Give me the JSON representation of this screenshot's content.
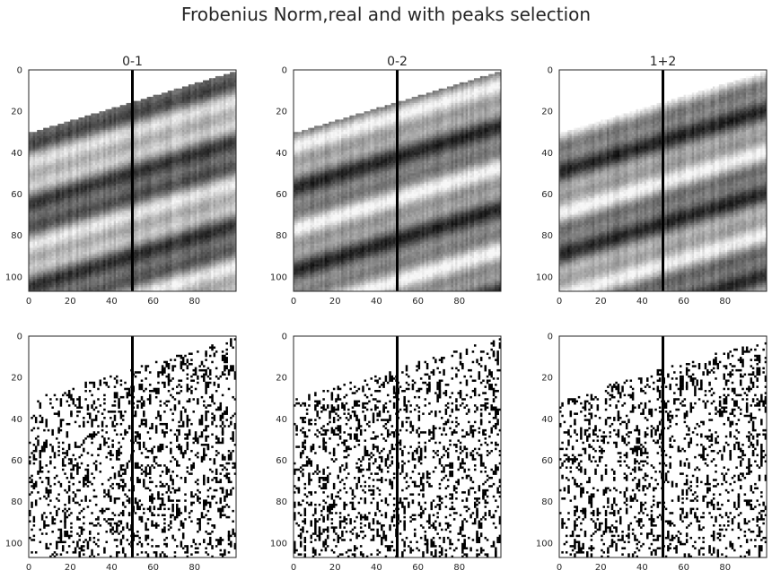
{
  "suptitle": "Frobenius Norm,real and with peaks selection",
  "chart_data": [
    {
      "type": "heatmap",
      "title": "0-1",
      "row": "top",
      "colormap": "grayscale",
      "xlim": [
        0,
        100
      ],
      "ylim": [
        107,
        0
      ],
      "xticks": [
        0,
        20,
        40,
        60,
        80
      ],
      "yticks": [
        0,
        20,
        40,
        60,
        80,
        100
      ],
      "vertical_line_x": 50,
      "valid_region": "parallelogram",
      "grid": false
    },
    {
      "type": "heatmap",
      "title": "0-2",
      "row": "top",
      "colormap": "grayscale",
      "xlim": [
        0,
        100
      ],
      "ylim": [
        107,
        0
      ],
      "xticks": [
        0,
        20,
        40,
        60,
        80
      ],
      "yticks": [
        0,
        20,
        40,
        60,
        80,
        100
      ],
      "vertical_line_x": 50,
      "valid_region": "parallelogram",
      "grid": false
    },
    {
      "type": "heatmap",
      "title": "1+2",
      "row": "top",
      "colormap": "grayscale",
      "xlim": [
        0,
        100
      ],
      "ylim": [
        107,
        0
      ],
      "xticks": [
        0,
        20,
        40,
        60,
        80
      ],
      "yticks": [
        0,
        20,
        40,
        60,
        80,
        100
      ],
      "vertical_line_x": 50,
      "valid_region": "parallelogram",
      "grid": false
    },
    {
      "type": "heatmap",
      "title": "",
      "row": "bottom",
      "colormap": "binary",
      "xlim": [
        0,
        100
      ],
      "ylim": [
        107,
        0
      ],
      "xticks": [
        0,
        20,
        40,
        60,
        80
      ],
      "yticks": [
        0,
        20,
        40,
        60,
        80,
        100
      ],
      "vertical_line_x": 50,
      "valid_region": "parallelogram",
      "grid": false
    },
    {
      "type": "heatmap",
      "title": "",
      "row": "bottom",
      "colormap": "binary",
      "xlim": [
        0,
        100
      ],
      "ylim": [
        107,
        0
      ],
      "xticks": [
        0,
        20,
        40,
        60,
        80
      ],
      "yticks": [
        0,
        20,
        40,
        60,
        80,
        100
      ],
      "vertical_line_x": 50,
      "valid_region": "parallelogram",
      "grid": false
    },
    {
      "type": "heatmap",
      "title": "",
      "row": "bottom",
      "colormap": "binary",
      "xlim": [
        0,
        100
      ],
      "ylim": [
        107,
        0
      ],
      "xticks": [
        0,
        20,
        40,
        60,
        80
      ],
      "yticks": [
        0,
        20,
        40,
        60,
        80,
        100
      ],
      "vertical_line_x": 50,
      "valid_region": "parallelogram",
      "grid": false
    }
  ]
}
